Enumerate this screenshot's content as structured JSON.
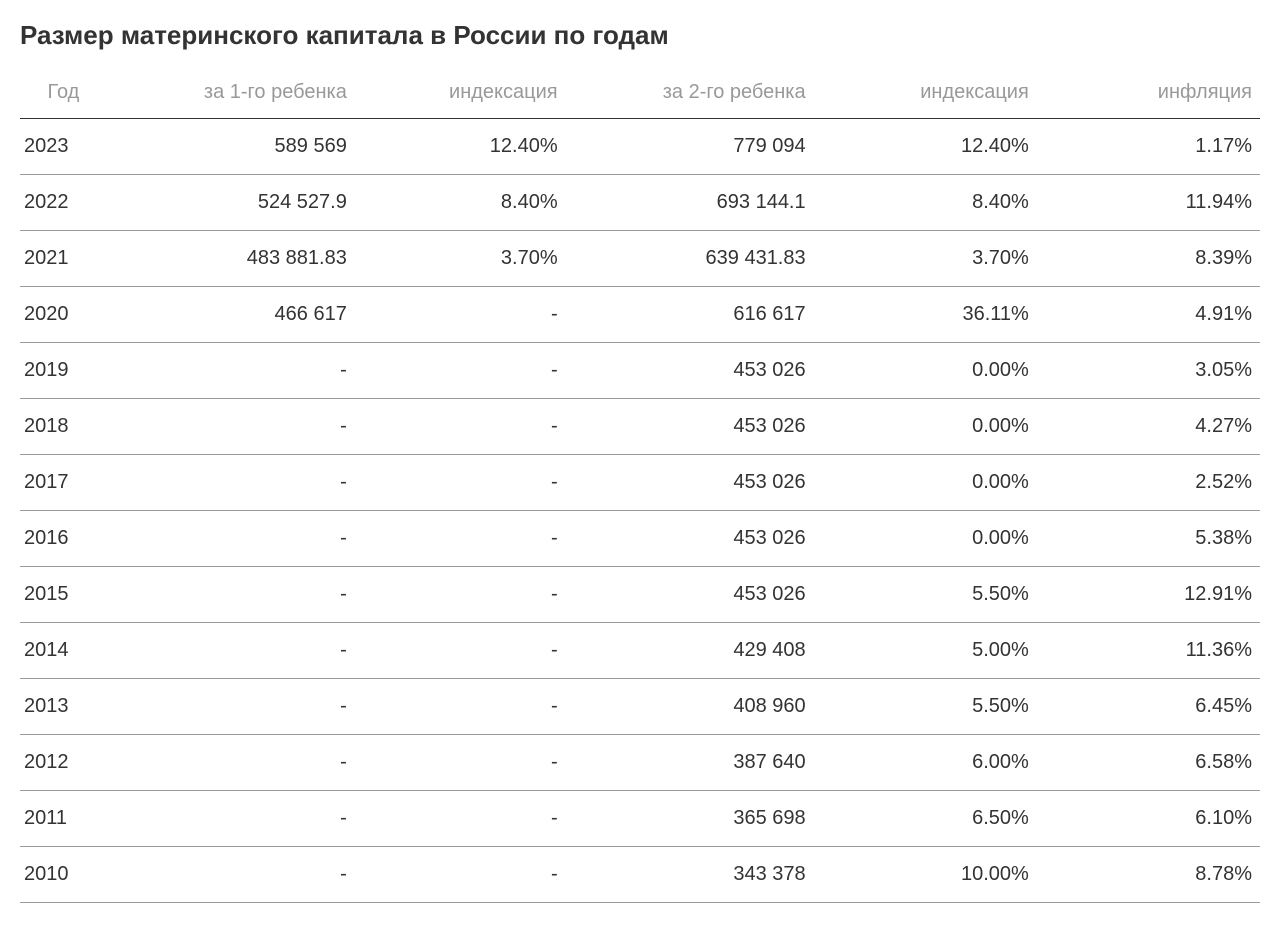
{
  "title": "Размер материнского капитала в России по годам",
  "table": {
    "columns": [
      "Год",
      "за 1-го ребенка",
      "индексация",
      "за 2-го ребенка",
      "индексация",
      "инфляция"
    ],
    "rows": [
      {
        "year": "2023",
        "first": "589 569",
        "idx1": "12.40%",
        "second": "779 094",
        "idx2": "12.40%",
        "infl": "1.17%"
      },
      {
        "year": "2022",
        "first": "524 527.9",
        "idx1": "8.40%",
        "second": "693 144.1",
        "idx2": "8.40%",
        "infl": "11.94%"
      },
      {
        "year": "2021",
        "first": "483 881.83",
        "idx1": "3.70%",
        "second": "639 431.83",
        "idx2": "3.70%",
        "infl": "8.39%"
      },
      {
        "year": "2020",
        "first": "466 617",
        "idx1": "-",
        "second": "616 617",
        "idx2": "36.11%",
        "infl": "4.91%"
      },
      {
        "year": "2019",
        "first": "-",
        "idx1": "-",
        "second": "453 026",
        "idx2": "0.00%",
        "infl": "3.05%"
      },
      {
        "year": "2018",
        "first": "-",
        "idx1": "-",
        "second": "453 026",
        "idx2": "0.00%",
        "infl": "4.27%"
      },
      {
        "year": "2017",
        "first": "-",
        "idx1": "-",
        "second": "453 026",
        "idx2": "0.00%",
        "infl": "2.52%"
      },
      {
        "year": "2016",
        "first": "-",
        "idx1": "-",
        "second": "453 026",
        "idx2": "0.00%",
        "infl": "5.38%"
      },
      {
        "year": "2015",
        "first": "-",
        "idx1": "-",
        "second": "453 026",
        "idx2": "5.50%",
        "infl": "12.91%"
      },
      {
        "year": "2014",
        "first": "-",
        "idx1": "-",
        "second": "429 408",
        "idx2": "5.00%",
        "infl": "11.36%"
      },
      {
        "year": "2013",
        "first": "-",
        "idx1": "-",
        "second": "408 960",
        "idx2": "5.50%",
        "infl": "6.45%"
      },
      {
        "year": "2012",
        "first": "-",
        "idx1": "-",
        "second": "387 640",
        "idx2": "6.00%",
        "infl": "6.58%"
      },
      {
        "year": "2011",
        "first": "-",
        "idx1": "-",
        "second": "365 698",
        "idx2": "6.50%",
        "infl": "6.10%"
      },
      {
        "year": "2010",
        "first": "-",
        "idx1": "-",
        "second": "343 378",
        "idx2": "10.00%",
        "infl": "8.78%"
      }
    ]
  },
  "style": {
    "title_color": "#333333",
    "title_fontsize": 26,
    "header_color": "#999999",
    "header_fontsize": 20,
    "body_color": "#333333",
    "body_fontsize": 20,
    "header_border_color": "#333333",
    "row_border_color": "#999999",
    "background_color": "#ffffff"
  }
}
